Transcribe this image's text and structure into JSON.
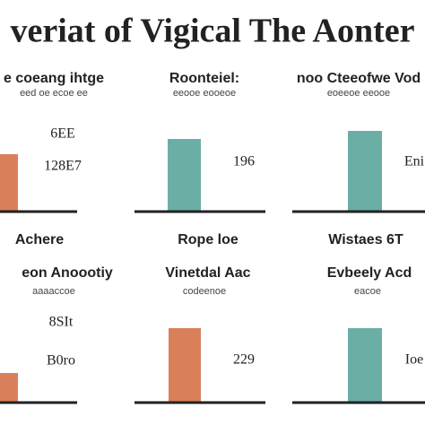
{
  "title": "veriat of Vigical The Aonter",
  "panels": [
    {
      "heading": "e coeang ihtge",
      "subheading": "eed oe ecoe ee",
      "labels": [
        "6EE",
        "128E7"
      ]
    },
    {
      "heading": "Roonteiel:",
      "subheading": "eeooe eooeoe",
      "labels": [
        "196"
      ]
    },
    {
      "heading": "noo Cteeofwe Vod",
      "subheading": "eoeeoe eeooe",
      "labels": [
        "Eni"
      ]
    },
    {
      "heading": "Achere",
      "subheading": "eon Anoootiy",
      "note": "aaaaccoe",
      "labels": [
        "8SIt",
        "B0ro"
      ]
    },
    {
      "heading": "Rope loe",
      "subheading": "Vinetdal Aac",
      "note": "codeenoe",
      "labels": [
        "229"
      ]
    },
    {
      "heading": "Wistaes 6T",
      "subheading": "Evbeely Acd",
      "note": "eacoe",
      "labels": [
        "Ioe"
      ]
    }
  ]
}
